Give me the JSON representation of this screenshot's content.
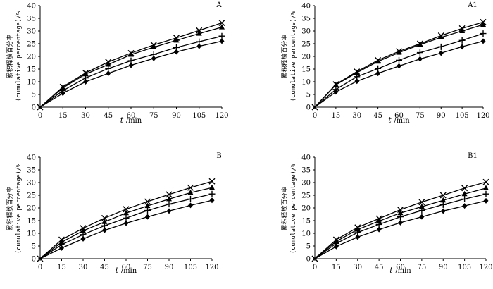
{
  "chart_data": [
    {
      "type": "line",
      "panel_label": "A",
      "x": [
        0,
        15,
        30,
        45,
        60,
        75,
        90,
        105,
        120
      ],
      "xlim": [
        0,
        120
      ],
      "ylim": [
        0,
        40
      ],
      "ylabel_cn": "累积释放百分率",
      "ylabel_en": "(cumulative percentage)/%",
      "xlabel_var": "t",
      "xlabel_unit": "/min",
      "series": [
        {
          "marker": "x",
          "values": [
            0,
            8.0,
            13.5,
            17.8,
            21.3,
            24.5,
            27.3,
            30.2,
            33.2
          ]
        },
        {
          "marker": "triangle",
          "values": [
            0,
            7.6,
            13.0,
            16.8,
            20.7,
            23.6,
            26.3,
            29.0,
            31.5
          ]
        },
        {
          "marker": "plus",
          "values": [
            0,
            6.5,
            11.5,
            15.2,
            18.3,
            20.8,
            23.5,
            25.8,
            28.0
          ]
        },
        {
          "marker": "diamond",
          "values": [
            0,
            5.5,
            10.0,
            13.3,
            16.5,
            19.2,
            21.8,
            24.0,
            26.0
          ]
        }
      ]
    },
    {
      "type": "line",
      "panel_label": "A1",
      "x": [
        0,
        15,
        30,
        45,
        60,
        75,
        90,
        105,
        120
      ],
      "xlim": [
        0,
        120
      ],
      "ylim": [
        0,
        40
      ],
      "ylabel_cn": "累积释放百分率",
      "ylabel_en": "(cumulative percentage)/%",
      "xlabel_var": "t",
      "xlabel_unit": "/min",
      "series": [
        {
          "marker": "x",
          "values": [
            0,
            9.0,
            14.0,
            18.5,
            22.0,
            25.0,
            28.2,
            31.0,
            33.5
          ]
        },
        {
          "marker": "triangle",
          "values": [
            0,
            8.8,
            13.6,
            18.0,
            21.5,
            24.6,
            27.5,
            30.0,
            32.5
          ]
        },
        {
          "marker": "plus",
          "values": [
            0,
            7.0,
            12.0,
            15.2,
            18.5,
            21.5,
            23.8,
            26.3,
            29.0
          ]
        },
        {
          "marker": "diamond",
          "values": [
            0,
            6.0,
            10.2,
            13.3,
            16.2,
            19.0,
            21.3,
            23.8,
            26.0
          ]
        }
      ]
    },
    {
      "type": "line",
      "panel_label": "B",
      "x": [
        0,
        15,
        30,
        45,
        60,
        75,
        90,
        105,
        120
      ],
      "xlim": [
        0,
        120
      ],
      "ylim": [
        0,
        40
      ],
      "ylabel_cn": "累积释放百分率",
      "ylabel_en": "(cumulative percentage)/%",
      "xlabel_var": "t",
      "xlabel_unit": "/min",
      "series": [
        {
          "marker": "x",
          "values": [
            0,
            7.5,
            12.0,
            16.0,
            19.5,
            22.5,
            25.3,
            28.0,
            30.5
          ]
        },
        {
          "marker": "triangle",
          "values": [
            0,
            6.5,
            11.0,
            14.5,
            18.0,
            20.8,
            23.5,
            26.0,
            28.0
          ]
        },
        {
          "marker": "plus",
          "values": [
            0,
            5.5,
            9.5,
            13.0,
            16.0,
            19.0,
            21.5,
            23.5,
            25.5
          ]
        },
        {
          "marker": "diamond",
          "values": [
            0,
            4.2,
            7.8,
            11.2,
            14.0,
            16.5,
            18.8,
            21.0,
            23.0
          ]
        }
      ]
    },
    {
      "type": "line",
      "panel_label": "B1",
      "x": [
        0,
        15,
        30,
        45,
        60,
        75,
        90,
        105,
        120
      ],
      "xlim": [
        0,
        120
      ],
      "ylim": [
        0,
        40
      ],
      "ylabel_cn": "累积释放百分率",
      "ylabel_en": "(cumulative percentage)/%",
      "xlabel_var": "t",
      "xlabel_unit": "/min",
      "series": [
        {
          "marker": "x",
          "values": [
            0,
            7.5,
            12.3,
            15.8,
            19.3,
            22.3,
            25.0,
            27.8,
            30.2
          ]
        },
        {
          "marker": "triangle",
          "values": [
            0,
            6.8,
            11.5,
            14.8,
            18.0,
            20.5,
            23.0,
            25.5,
            27.8
          ]
        },
        {
          "marker": "plus",
          "values": [
            0,
            6.0,
            10.3,
            13.5,
            16.5,
            19.0,
            21.3,
            23.5,
            25.5
          ]
        },
        {
          "marker": "diamond",
          "values": [
            0,
            4.8,
            8.5,
            11.5,
            14.2,
            16.5,
            18.8,
            20.8,
            22.8
          ]
        }
      ]
    }
  ]
}
